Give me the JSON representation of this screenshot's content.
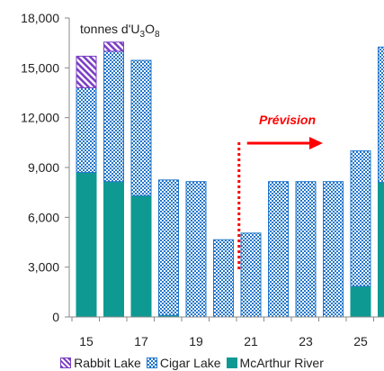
{
  "chart_data": {
    "type": "bar",
    "stacked": true,
    "categories": [
      "15",
      "16",
      "17",
      "18",
      "19",
      "20",
      "21",
      "22",
      "23",
      "24",
      "25",
      "26"
    ],
    "x_tick_labels": [
      "15",
      "17",
      "19",
      "21",
      "23",
      "25"
    ],
    "y_tick_labels": [
      "0",
      "3,000",
      "6,000",
      "9,000",
      "12,000",
      "15,000",
      "18,000"
    ],
    "unit_label_prefix": "tonnes d'U",
    "unit_sub1": "3",
    "unit_mid": "O",
    "unit_sub2": "8",
    "ylim": [
      0,
      18000
    ],
    "ytick_step": 3000,
    "grid": false,
    "legend_position": "bottom",
    "forecast": {
      "label": "Prévision",
      "start_between": [
        "20",
        "21"
      ]
    },
    "series": [
      {
        "name": "McArthur River",
        "pattern": "solid",
        "color": "#0e9a93",
        "values": [
          8700,
          8150,
          7300,
          100,
          0,
          0,
          0,
          0,
          0,
          0,
          1850,
          8100
        ]
      },
      {
        "name": "Cigar Lake",
        "pattern": "checker",
        "color": "#2277cc",
        "values": [
          5100,
          7850,
          8150,
          8150,
          8150,
          4650,
          5050,
          8150,
          8150,
          8150,
          8150,
          8150
        ]
      },
      {
        "name": "Rabbit Lake",
        "pattern": "hatch",
        "color": "#7b3fc4",
        "values": [
          1900,
          550,
          0,
          0,
          0,
          0,
          0,
          0,
          0,
          0,
          0,
          0
        ]
      }
    ]
  }
}
